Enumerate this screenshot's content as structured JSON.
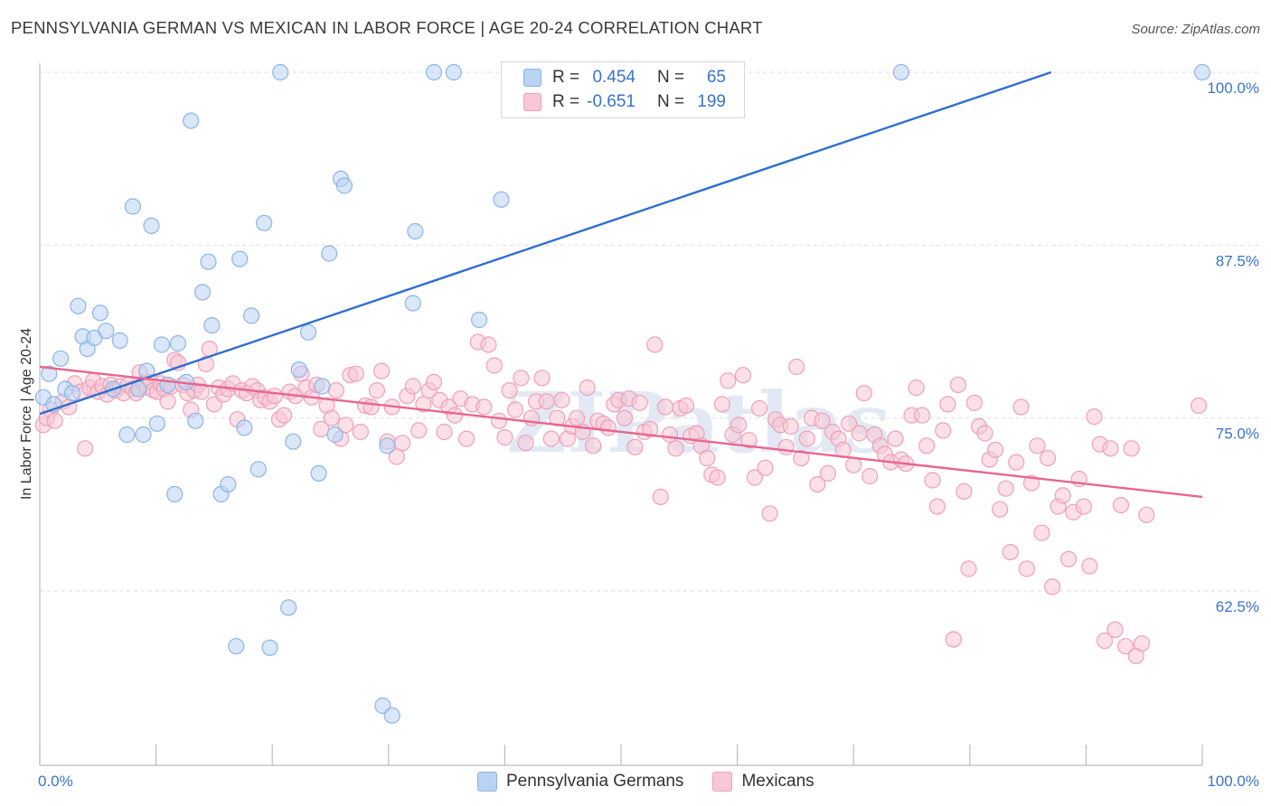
{
  "title": "PENNSYLVANIA GERMAN VS MEXICAN IN LABOR FORCE | AGE 20-24 CORRELATION CHART",
  "source": "Source: ZipAtlas.com",
  "watermark": "ZIPatlas",
  "colors": {
    "blue_fill": "#b9d3f3",
    "blue_stroke": "#8db4e6",
    "blue_line": "#2f6fcf",
    "pink_fill": "#f8c7d6",
    "pink_stroke": "#eea0b8",
    "pink_line": "#e8668f",
    "tick_text": "#3b73c9",
    "grid": "#dddddd"
  },
  "legend_top": [
    {
      "r_label": "R =",
      "r_value": "0.454",
      "n_label": "N =",
      "n_value": "65"
    },
    {
      "r_label": "R =",
      "r_value": "-0.651",
      "n_label": "N =",
      "n_value": "199"
    }
  ],
  "legend_bottom": [
    "Pennsylvania Germans",
    "Mexicans"
  ],
  "chart_data": {
    "type": "scatter",
    "title": "PENNSYLVANIA GERMAN VS MEXICAN IN LABOR FORCE | AGE 20-24 CORRELATION CHART",
    "xlabel": "",
    "ylabel": "In Labor Force | Age 20-24",
    "xlim": [
      0,
      100
    ],
    "ylim": [
      52.5,
      101.5
    ],
    "x_tick_labels": [
      "0.0%",
      "100.0%"
    ],
    "y_ticks": [
      62.5,
      75.0,
      87.5,
      100.0
    ],
    "y_tick_labels": [
      "62.5%",
      "75.0%",
      "87.5%",
      "100.0%"
    ],
    "grid": true,
    "legend": "top-center and bottom-center",
    "series": [
      {
        "name": "Pennsylvania Germans",
        "r": 0.454,
        "n": 65,
        "trend": {
          "x": [
            0,
            87
          ],
          "y": [
            75.3,
            100.0
          ]
        },
        "points": [
          [
            0.3,
            76.5
          ],
          [
            0.8,
            78.2
          ],
          [
            1.2,
            76.0
          ],
          [
            1.8,
            79.3
          ],
          [
            2.2,
            77.1
          ],
          [
            2.8,
            76.8
          ],
          [
            3.3,
            83.1
          ],
          [
            3.7,
            80.9
          ],
          [
            4.1,
            80.0
          ],
          [
            4.7,
            80.8
          ],
          [
            5.2,
            82.6
          ],
          [
            5.7,
            81.3
          ],
          [
            6.3,
            77.1
          ],
          [
            6.9,
            80.6
          ],
          [
            7.5,
            73.8
          ],
          [
            8.0,
            90.3
          ],
          [
            8.5,
            77.1
          ],
          [
            8.9,
            73.8
          ],
          [
            9.2,
            78.4
          ],
          [
            9.6,
            88.9
          ],
          [
            10.1,
            74.6
          ],
          [
            10.5,
            80.3
          ],
          [
            11.0,
            77.4
          ],
          [
            11.6,
            69.5
          ],
          [
            11.9,
            80.4
          ],
          [
            12.6,
            77.6
          ],
          [
            13.0,
            96.5
          ],
          [
            13.4,
            74.8
          ],
          [
            14.0,
            84.1
          ],
          [
            14.5,
            86.3
          ],
          [
            14.8,
            81.7
          ],
          [
            15.6,
            69.5
          ],
          [
            16.2,
            70.2
          ],
          [
            16.9,
            58.5
          ],
          [
            17.2,
            86.5
          ],
          [
            17.6,
            74.3
          ],
          [
            18.2,
            82.4
          ],
          [
            18.8,
            71.3
          ],
          [
            19.3,
            89.1
          ],
          [
            19.8,
            58.4
          ],
          [
            20.7,
            100.0
          ],
          [
            21.4,
            61.3
          ],
          [
            21.8,
            73.3
          ],
          [
            22.3,
            78.5
          ],
          [
            23.1,
            81.2
          ],
          [
            24.0,
            71.0
          ],
          [
            24.3,
            77.3
          ],
          [
            24.9,
            86.9
          ],
          [
            25.4,
            73.8
          ],
          [
            25.9,
            92.3
          ],
          [
            26.2,
            91.8
          ],
          [
            29.5,
            54.2
          ],
          [
            29.9,
            73.0
          ],
          [
            30.3,
            53.5
          ],
          [
            32.1,
            83.3
          ],
          [
            32.3,
            88.5
          ],
          [
            33.9,
            100.0
          ],
          [
            35.6,
            100.0
          ],
          [
            37.8,
            82.1
          ],
          [
            39.7,
            90.8
          ],
          [
            46.4,
            100.0
          ],
          [
            53.4,
            100.0
          ],
          [
            57.5,
            100.0
          ],
          [
            74.1,
            100.0
          ],
          [
            100.0,
            100.0
          ]
        ]
      },
      {
        "name": "Mexicans",
        "r": -0.651,
        "n": 199,
        "trend": {
          "x": [
            0,
            100
          ],
          "y": [
            78.7,
            69.3
          ]
        },
        "points": [
          [
            0.3,
            74.5
          ],
          [
            0.6,
            75.0
          ],
          [
            0.9,
            75.6
          ],
          [
            1.3,
            74.8
          ],
          [
            2.0,
            76.2
          ],
          [
            2.5,
            75.8
          ],
          [
            3.0,
            77.5
          ],
          [
            3.5,
            76.9
          ],
          [
            3.9,
            72.8
          ],
          [
            4.3,
            77.2
          ],
          [
            4.6,
            77.7
          ],
          [
            5.0,
            76.9
          ],
          [
            5.4,
            77.3
          ],
          [
            5.8,
            76.7
          ],
          [
            6.1,
            77.4
          ],
          [
            6.5,
            77.0
          ],
          [
            6.9,
            77.3
          ],
          [
            7.2,
            76.8
          ],
          [
            7.6,
            77.4
          ],
          [
            8.0,
            77.1
          ],
          [
            8.3,
            76.8
          ],
          [
            8.6,
            78.3
          ],
          [
            8.9,
            77.5
          ],
          [
            9.2,
            77.2
          ],
          [
            9.5,
            77.6
          ],
          [
            9.8,
            77.0
          ],
          [
            10.1,
            76.9
          ],
          [
            10.4,
            77.5
          ],
          [
            10.7,
            77.1
          ],
          [
            11.0,
            76.2
          ],
          [
            11.3,
            77.3
          ],
          [
            11.6,
            79.2
          ],
          [
            11.9,
            79.0
          ],
          [
            12.3,
            77.4
          ],
          [
            12.7,
            76.8
          ],
          [
            13.0,
            75.6
          ],
          [
            13.3,
            77.0
          ],
          [
            13.6,
            77.4
          ],
          [
            13.9,
            76.9
          ],
          [
            14.3,
            78.9
          ],
          [
            14.6,
            80.0
          ],
          [
            15.0,
            76.0
          ],
          [
            15.4,
            77.2
          ],
          [
            15.8,
            76.7
          ],
          [
            16.2,
            77.1
          ],
          [
            16.6,
            77.5
          ],
          [
            17.0,
            74.9
          ],
          [
            17.4,
            77.0
          ],
          [
            17.8,
            76.8
          ],
          [
            18.3,
            77.3
          ],
          [
            18.7,
            77.0
          ],
          [
            19.0,
            76.3
          ],
          [
            19.4,
            76.5
          ],
          [
            19.8,
            76.2
          ],
          [
            20.2,
            76.6
          ],
          [
            20.6,
            74.9
          ],
          [
            21.0,
            75.2
          ],
          [
            21.5,
            76.9
          ],
          [
            22.0,
            76.6
          ],
          [
            22.5,
            78.2
          ],
          [
            22.9,
            77.2
          ],
          [
            23.4,
            76.5
          ],
          [
            23.8,
            77.4
          ],
          [
            24.2,
            74.2
          ],
          [
            24.7,
            75.9
          ],
          [
            25.1,
            75.0
          ],
          [
            25.5,
            77.0
          ],
          [
            25.9,
            73.5
          ],
          [
            26.3,
            74.5
          ],
          [
            26.7,
            78.1
          ],
          [
            27.2,
            78.2
          ],
          [
            27.6,
            74.0
          ],
          [
            28.0,
            75.9
          ],
          [
            28.5,
            75.8
          ],
          [
            29.0,
            77.0
          ],
          [
            29.4,
            78.4
          ],
          [
            29.9,
            73.3
          ],
          [
            30.3,
            75.8
          ],
          [
            30.7,
            72.2
          ],
          [
            31.2,
            73.2
          ],
          [
            31.6,
            76.6
          ],
          [
            32.1,
            77.3
          ],
          [
            32.6,
            74.1
          ],
          [
            33.0,
            76.0
          ],
          [
            33.5,
            77.0
          ],
          [
            33.9,
            77.6
          ],
          [
            34.4,
            76.3
          ],
          [
            34.8,
            74.0
          ],
          [
            35.2,
            75.8
          ],
          [
            35.7,
            75.2
          ],
          [
            36.2,
            76.4
          ],
          [
            36.7,
            73.5
          ],
          [
            37.2,
            76.0
          ],
          [
            37.7,
            80.5
          ],
          [
            38.2,
            75.8
          ],
          [
            38.6,
            80.3
          ],
          [
            39.1,
            78.8
          ],
          [
            39.5,
            74.8
          ],
          [
            40.0,
            73.6
          ],
          [
            40.4,
            77.0
          ],
          [
            40.9,
            75.6
          ],
          [
            41.4,
            77.9
          ],
          [
            41.8,
            73.2
          ],
          [
            42.3,
            75.0
          ],
          [
            42.7,
            76.2
          ],
          [
            43.2,
            77.9
          ],
          [
            43.6,
            76.2
          ],
          [
            44.0,
            73.5
          ],
          [
            44.5,
            75.0
          ],
          [
            44.9,
            76.3
          ],
          [
            45.4,
            73.5
          ],
          [
            45.8,
            74.4
          ],
          [
            46.2,
            75.0
          ],
          [
            46.7,
            74.0
          ],
          [
            47.1,
            77.2
          ],
          [
            47.6,
            73.0
          ],
          [
            48.0,
            74.8
          ],
          [
            48.5,
            74.6
          ],
          [
            48.9,
            74.3
          ],
          [
            49.4,
            76.0
          ],
          [
            49.8,
            76.3
          ],
          [
            50.3,
            75.0
          ],
          [
            50.7,
            76.4
          ],
          [
            51.2,
            72.9
          ],
          [
            51.6,
            76.1
          ],
          [
            52.0,
            74.0
          ],
          [
            52.5,
            74.2
          ],
          [
            52.9,
            80.3
          ],
          [
            53.4,
            69.3
          ],
          [
            53.8,
            75.8
          ],
          [
            54.2,
            73.8
          ],
          [
            54.7,
            72.8
          ],
          [
            55.1,
            75.7
          ],
          [
            55.6,
            75.9
          ],
          [
            56.0,
            73.7
          ],
          [
            56.5,
            73.9
          ],
          [
            56.9,
            73.0
          ],
          [
            57.4,
            72.1
          ],
          [
            57.8,
            70.9
          ],
          [
            58.3,
            70.7
          ],
          [
            58.7,
            76.0
          ],
          [
            59.2,
            77.7
          ],
          [
            59.6,
            73.8
          ],
          [
            60.1,
            74.5
          ],
          [
            60.5,
            78.1
          ],
          [
            61.0,
            73.4
          ],
          [
            61.5,
            70.7
          ],
          [
            61.9,
            75.7
          ],
          [
            62.4,
            71.4
          ],
          [
            62.8,
            68.1
          ],
          [
            63.3,
            74.9
          ],
          [
            63.7,
            74.5
          ],
          [
            64.2,
            72.9
          ],
          [
            64.6,
            74.4
          ],
          [
            65.1,
            78.7
          ],
          [
            65.5,
            72.1
          ],
          [
            66.0,
            73.5
          ],
          [
            66.4,
            75.0
          ],
          [
            66.9,
            70.2
          ],
          [
            67.3,
            74.8
          ],
          [
            67.8,
            71.0
          ],
          [
            68.2,
            74.0
          ],
          [
            68.7,
            73.5
          ],
          [
            69.1,
            72.7
          ],
          [
            69.6,
            74.6
          ],
          [
            70.0,
            71.6
          ],
          [
            70.5,
            73.9
          ],
          [
            70.9,
            76.8
          ],
          [
            71.4,
            70.8
          ],
          [
            71.8,
            73.8
          ],
          [
            72.3,
            73.0
          ],
          [
            72.7,
            72.4
          ],
          [
            73.2,
            71.8
          ],
          [
            73.6,
            73.5
          ],
          [
            74.1,
            72.0
          ],
          [
            74.5,
            71.7
          ],
          [
            75.0,
            75.2
          ],
          [
            75.4,
            77.2
          ],
          [
            75.9,
            75.2
          ],
          [
            76.3,
            73.0
          ],
          [
            76.8,
            70.5
          ],
          [
            77.2,
            68.6
          ],
          [
            77.7,
            74.1
          ],
          [
            78.1,
            76.0
          ],
          [
            78.6,
            59.0
          ],
          [
            79.0,
            77.4
          ],
          [
            79.5,
            69.7
          ],
          [
            79.9,
            64.1
          ],
          [
            80.4,
            76.1
          ],
          [
            80.8,
            74.4
          ],
          [
            81.3,
            73.9
          ],
          [
            81.7,
            72.0
          ],
          [
            82.2,
            72.7
          ],
          [
            82.6,
            68.4
          ],
          [
            83.1,
            69.9
          ],
          [
            83.5,
            65.3
          ],
          [
            84.0,
            71.8
          ],
          [
            84.4,
            75.8
          ],
          [
            84.9,
            64.1
          ],
          [
            85.3,
            70.3
          ],
          [
            85.8,
            73.0
          ],
          [
            86.2,
            66.7
          ],
          [
            86.7,
            72.1
          ],
          [
            87.1,
            62.8
          ],
          [
            87.6,
            68.6
          ],
          [
            88.0,
            69.4
          ],
          [
            88.5,
            64.8
          ],
          [
            88.9,
            68.2
          ],
          [
            89.4,
            70.6
          ],
          [
            89.8,
            68.6
          ],
          [
            90.3,
            64.3
          ],
          [
            90.7,
            75.1
          ],
          [
            91.2,
            73.1
          ],
          [
            91.6,
            58.9
          ],
          [
            92.1,
            72.8
          ],
          [
            92.5,
            59.7
          ],
          [
            93.0,
            68.7
          ],
          [
            93.4,
            58.5
          ],
          [
            93.9,
            72.8
          ],
          [
            94.3,
            57.8
          ],
          [
            94.8,
            58.7
          ],
          [
            95.2,
            68.0
          ],
          [
            99.7,
            75.9
          ]
        ]
      }
    ]
  }
}
